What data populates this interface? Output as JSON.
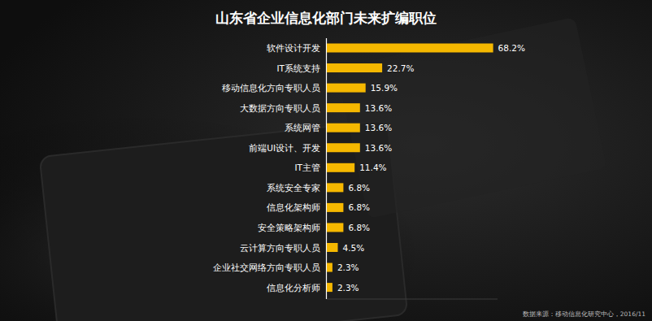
{
  "chart_data": {
    "type": "bar",
    "orientation": "horizontal",
    "title": "山东省企业信息化部门未来扩编职位",
    "note": "数据来源：移动信息化研究中心，2016/11",
    "categories": [
      "软件设计开发",
      "IT系统支持",
      "移动信息化方向专职人员",
      "大数据方向专职人员",
      "系统网管",
      "前端UI设计、开发",
      "IT主管",
      "系统安全专家",
      "信息化架构师",
      "安全策略架构师",
      "云计算方向专职人员",
      "企业社交网络方向专职人员",
      "信息化分析师"
    ],
    "values": [
      68.2,
      22.7,
      15.9,
      13.6,
      13.6,
      13.6,
      11.4,
      6.8,
      6.8,
      6.8,
      4.5,
      2.3,
      2.3
    ],
    "value_labels": [
      "68.2%",
      "22.7%",
      "15.9%",
      "13.6%",
      "13.6%",
      "13.6%",
      "11.4%",
      "6.8%",
      "6.8%",
      "6.8%",
      "4.5%",
      "2.3%",
      "2.3%"
    ],
    "color": "#f5b800",
    "xlim": [
      0,
      70
    ],
    "data_labels": true,
    "tick_labels": "y",
    "grid": false
  }
}
